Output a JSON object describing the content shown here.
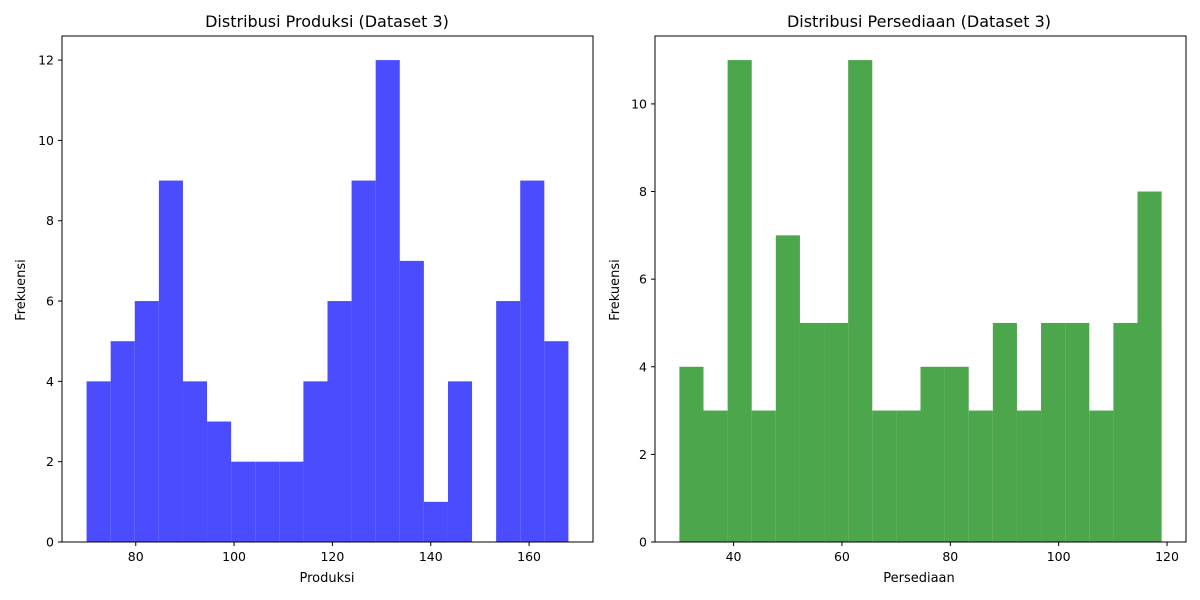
{
  "chart_data": [
    {
      "type": "bar",
      "title": "Distribusi Produksi (Dataset 3)",
      "xlabel": "Produksi",
      "ylabel": "Frekuensi",
      "color": "#4b4bff",
      "xlim": [
        65,
        173
      ],
      "ylim": [
        0,
        12.6
      ],
      "xticks": [
        80,
        100,
        120,
        140,
        160
      ],
      "yticks": [
        0,
        2,
        4,
        6,
        8,
        10,
        12
      ],
      "bin_edges": [
        70,
        74.9,
        79.8,
        84.7,
        89.6,
        94.5,
        99.4,
        104.3,
        109.2,
        114.1,
        119.0,
        123.9,
        128.8,
        133.7,
        138.6,
        143.5,
        148.4,
        153.3,
        158.2,
        163.1,
        168
      ],
      "values": [
        4,
        5,
        6,
        9,
        4,
        3,
        2,
        2,
        2,
        4,
        6,
        9,
        12,
        7,
        1,
        4,
        0,
        6,
        9,
        5
      ],
      "grid": false
    },
    {
      "type": "bar",
      "title": "Distribusi Persediaan (Dataset 3)",
      "xlabel": "Persediaan",
      "ylabel": "Frekuensi",
      "color": "#4ca64c",
      "xlim": [
        25.5,
        123.5
      ],
      "ylim": [
        0,
        11.55
      ],
      "xticks": [
        40,
        60,
        80,
        100,
        120
      ],
      "yticks": [
        0,
        2,
        4,
        6,
        8,
        10
      ],
      "bin_edges": [
        30,
        34.45,
        38.9,
        43.35,
        47.8,
        52.25,
        56.7,
        61.15,
        65.6,
        70.05,
        74.5,
        78.95,
        83.4,
        87.85,
        92.3,
        96.75,
        101.2,
        105.65,
        110.1,
        114.55,
        119
      ],
      "values": [
        4,
        3,
        11,
        3,
        7,
        5,
        5,
        11,
        3,
        3,
        4,
        4,
        3,
        5,
        3,
        5,
        5,
        3,
        5,
        8
      ],
      "grid": false
    }
  ]
}
